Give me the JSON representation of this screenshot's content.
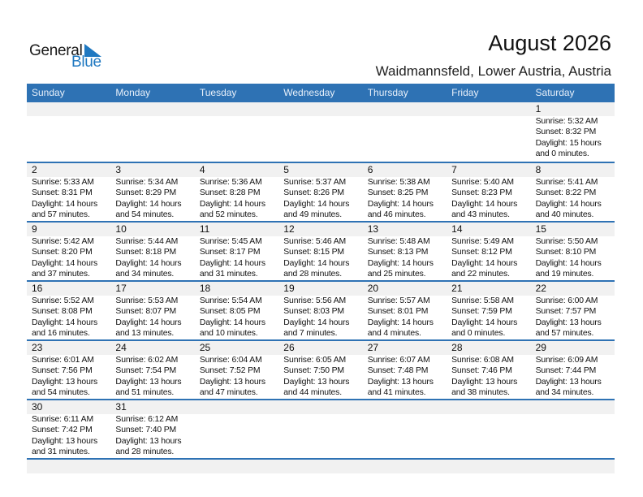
{
  "logo": {
    "text_general": "General",
    "text_blue": "Blue",
    "accent": "#1f78c1"
  },
  "header": {
    "title": "August 2026",
    "location": "Waidmannsfeld, Lower Austria, Austria"
  },
  "colors": {
    "header_bg": "#2e72b4",
    "date_strip": "#f1f1f1"
  },
  "weekdays": [
    "Sunday",
    "Monday",
    "Tuesday",
    "Wednesday",
    "Thursday",
    "Friday",
    "Saturday"
  ],
  "first_weekday_index": 6,
  "days": [
    {
      "day": "1",
      "sunrise": "Sunrise: 5:32 AM",
      "sunset": "Sunset: 8:32 PM",
      "daylight": "Daylight: 15 hours",
      "minutes": "and 0 minutes."
    },
    {
      "day": "2",
      "sunrise": "Sunrise: 5:33 AM",
      "sunset": "Sunset: 8:31 PM",
      "daylight": "Daylight: 14 hours",
      "minutes": "and 57 minutes."
    },
    {
      "day": "3",
      "sunrise": "Sunrise: 5:34 AM",
      "sunset": "Sunset: 8:29 PM",
      "daylight": "Daylight: 14 hours",
      "minutes": "and 54 minutes."
    },
    {
      "day": "4",
      "sunrise": "Sunrise: 5:36 AM",
      "sunset": "Sunset: 8:28 PM",
      "daylight": "Daylight: 14 hours",
      "minutes": "and 52 minutes."
    },
    {
      "day": "5",
      "sunrise": "Sunrise: 5:37 AM",
      "sunset": "Sunset: 8:26 PM",
      "daylight": "Daylight: 14 hours",
      "minutes": "and 49 minutes."
    },
    {
      "day": "6",
      "sunrise": "Sunrise: 5:38 AM",
      "sunset": "Sunset: 8:25 PM",
      "daylight": "Daylight: 14 hours",
      "minutes": "and 46 minutes."
    },
    {
      "day": "7",
      "sunrise": "Sunrise: 5:40 AM",
      "sunset": "Sunset: 8:23 PM",
      "daylight": "Daylight: 14 hours",
      "minutes": "and 43 minutes."
    },
    {
      "day": "8",
      "sunrise": "Sunrise: 5:41 AM",
      "sunset": "Sunset: 8:22 PM",
      "daylight": "Daylight: 14 hours",
      "minutes": "and 40 minutes."
    },
    {
      "day": "9",
      "sunrise": "Sunrise: 5:42 AM",
      "sunset": "Sunset: 8:20 PM",
      "daylight": "Daylight: 14 hours",
      "minutes": "and 37 minutes."
    },
    {
      "day": "10",
      "sunrise": "Sunrise: 5:44 AM",
      "sunset": "Sunset: 8:18 PM",
      "daylight": "Daylight: 14 hours",
      "minutes": "and 34 minutes."
    },
    {
      "day": "11",
      "sunrise": "Sunrise: 5:45 AM",
      "sunset": "Sunset: 8:17 PM",
      "daylight": "Daylight: 14 hours",
      "minutes": "and 31 minutes."
    },
    {
      "day": "12",
      "sunrise": "Sunrise: 5:46 AM",
      "sunset": "Sunset: 8:15 PM",
      "daylight": "Daylight: 14 hours",
      "minutes": "and 28 minutes."
    },
    {
      "day": "13",
      "sunrise": "Sunrise: 5:48 AM",
      "sunset": "Sunset: 8:13 PM",
      "daylight": "Daylight: 14 hours",
      "minutes": "and 25 minutes."
    },
    {
      "day": "14",
      "sunrise": "Sunrise: 5:49 AM",
      "sunset": "Sunset: 8:12 PM",
      "daylight": "Daylight: 14 hours",
      "minutes": "and 22 minutes."
    },
    {
      "day": "15",
      "sunrise": "Sunrise: 5:50 AM",
      "sunset": "Sunset: 8:10 PM",
      "daylight": "Daylight: 14 hours",
      "minutes": "and 19 minutes."
    },
    {
      "day": "16",
      "sunrise": "Sunrise: 5:52 AM",
      "sunset": "Sunset: 8:08 PM",
      "daylight": "Daylight: 14 hours",
      "minutes": "and 16 minutes."
    },
    {
      "day": "17",
      "sunrise": "Sunrise: 5:53 AM",
      "sunset": "Sunset: 8:07 PM",
      "daylight": "Daylight: 14 hours",
      "minutes": "and 13 minutes."
    },
    {
      "day": "18",
      "sunrise": "Sunrise: 5:54 AM",
      "sunset": "Sunset: 8:05 PM",
      "daylight": "Daylight: 14 hours",
      "minutes": "and 10 minutes."
    },
    {
      "day": "19",
      "sunrise": "Sunrise: 5:56 AM",
      "sunset": "Sunset: 8:03 PM",
      "daylight": "Daylight: 14 hours",
      "minutes": "and 7 minutes."
    },
    {
      "day": "20",
      "sunrise": "Sunrise: 5:57 AM",
      "sunset": "Sunset: 8:01 PM",
      "daylight": "Daylight: 14 hours",
      "minutes": "and 4 minutes."
    },
    {
      "day": "21",
      "sunrise": "Sunrise: 5:58 AM",
      "sunset": "Sunset: 7:59 PM",
      "daylight": "Daylight: 14 hours",
      "minutes": "and 0 minutes."
    },
    {
      "day": "22",
      "sunrise": "Sunrise: 6:00 AM",
      "sunset": "Sunset: 7:57 PM",
      "daylight": "Daylight: 13 hours",
      "minutes": "and 57 minutes."
    },
    {
      "day": "23",
      "sunrise": "Sunrise: 6:01 AM",
      "sunset": "Sunset: 7:56 PM",
      "daylight": "Daylight: 13 hours",
      "minutes": "and 54 minutes."
    },
    {
      "day": "24",
      "sunrise": "Sunrise: 6:02 AM",
      "sunset": "Sunset: 7:54 PM",
      "daylight": "Daylight: 13 hours",
      "minutes": "and 51 minutes."
    },
    {
      "day": "25",
      "sunrise": "Sunrise: 6:04 AM",
      "sunset": "Sunset: 7:52 PM",
      "daylight": "Daylight: 13 hours",
      "minutes": "and 47 minutes."
    },
    {
      "day": "26",
      "sunrise": "Sunrise: 6:05 AM",
      "sunset": "Sunset: 7:50 PM",
      "daylight": "Daylight: 13 hours",
      "minutes": "and 44 minutes."
    },
    {
      "day": "27",
      "sunrise": "Sunrise: 6:07 AM",
      "sunset": "Sunset: 7:48 PM",
      "daylight": "Daylight: 13 hours",
      "minutes": "and 41 minutes."
    },
    {
      "day": "28",
      "sunrise": "Sunrise: 6:08 AM",
      "sunset": "Sunset: 7:46 PM",
      "daylight": "Daylight: 13 hours",
      "minutes": "and 38 minutes."
    },
    {
      "day": "29",
      "sunrise": "Sunrise: 6:09 AM",
      "sunset": "Sunset: 7:44 PM",
      "daylight": "Daylight: 13 hours",
      "minutes": "and 34 minutes."
    },
    {
      "day": "30",
      "sunrise": "Sunrise: 6:11 AM",
      "sunset": "Sunset: 7:42 PM",
      "daylight": "Daylight: 13 hours",
      "minutes": "and 31 minutes."
    },
    {
      "day": "31",
      "sunrise": "Sunrise: 6:12 AM",
      "sunset": "Sunset: 7:40 PM",
      "daylight": "Daylight: 13 hours",
      "minutes": "and 28 minutes."
    }
  ]
}
